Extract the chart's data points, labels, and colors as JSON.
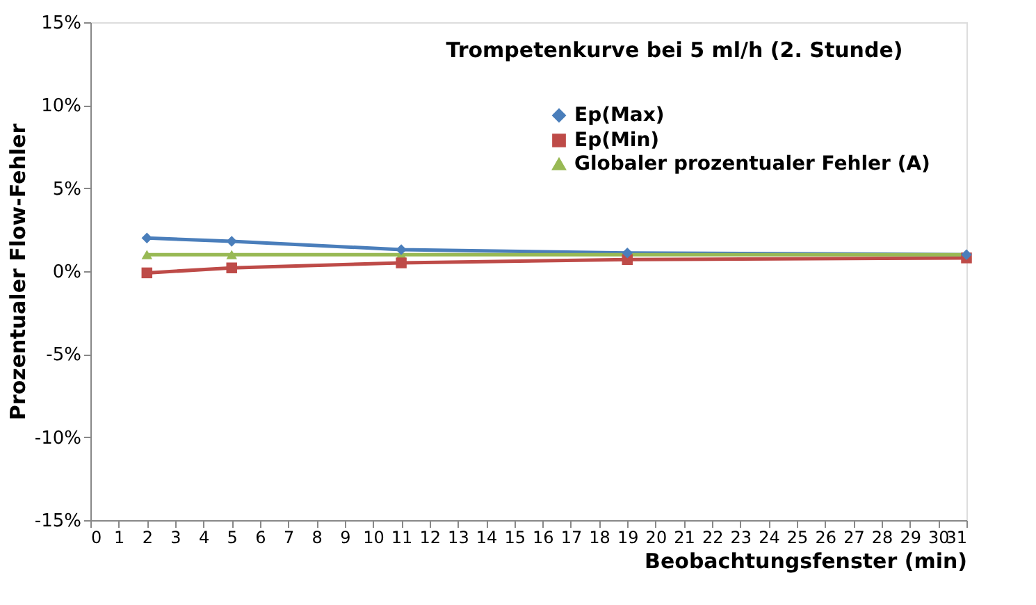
{
  "chart_data": {
    "type": "line",
    "title": "Trompetenkurve bei 5 ml/h (2. Stunde)",
    "xlabel": "Beobachtungsfenster (min)",
    "ylabel": "Prozentualer Flow-Fehler",
    "x": [
      2,
      5,
      11,
      19,
      31
    ],
    "series": [
      {
        "name": "Ep(Max)",
        "color": "#4a7ebb",
        "marker": "diamond",
        "values": [
          2.0,
          1.8,
          1.3,
          1.1,
          1.0
        ]
      },
      {
        "name": "Ep(Min)",
        "color": "#be4b48",
        "marker": "square",
        "values": [
          -0.1,
          0.2,
          0.5,
          0.7,
          0.8
        ]
      },
      {
        "name": "Globaler prozentualer Fehler (A)",
        "color": "#98b954",
        "marker": "triangle",
        "values": [
          1.0,
          1.0,
          1.0,
          1.0,
          1.0
        ]
      }
    ],
    "xlim": [
      0,
      31
    ],
    "xticks": [
      0,
      1,
      2,
      3,
      4,
      5,
      6,
      7,
      8,
      9,
      10,
      11,
      12,
      13,
      14,
      15,
      16,
      17,
      18,
      19,
      20,
      21,
      22,
      23,
      24,
      25,
      26,
      27,
      28,
      29,
      30,
      31
    ],
    "ylim": [
      -15,
      15
    ],
    "yticks": [
      {
        "value": -15,
        "label": "-15%"
      },
      {
        "value": -10,
        "label": "-10%"
      },
      {
        "value": -5,
        "label": "-5%"
      },
      {
        "value": 0,
        "label": "0%"
      },
      {
        "value": 5,
        "label": "5%"
      },
      {
        "value": 10,
        "label": "10%"
      },
      {
        "value": 15,
        "label": "15%"
      }
    ],
    "grid": false,
    "legend": "top right",
    "line_style": "solid"
  }
}
